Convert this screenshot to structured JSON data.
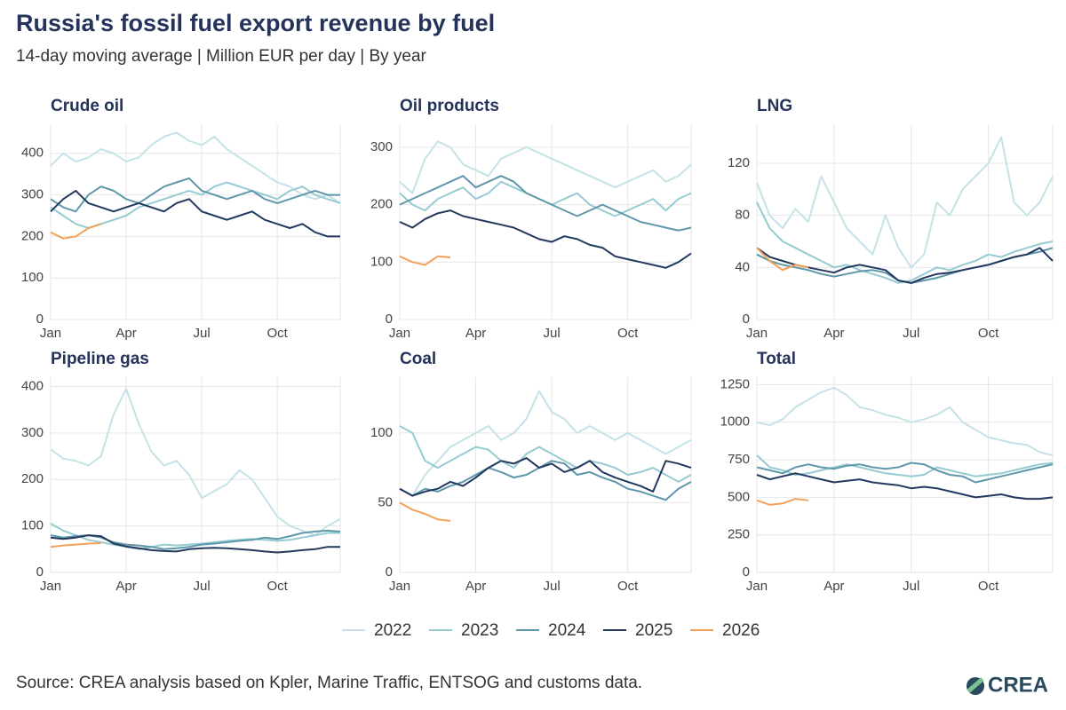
{
  "title": "Russia's fossil fuel export revenue by fuel",
  "subtitle": "14-day moving average | Million EUR per day | By year",
  "source": "Source: CREA analysis based on Kpler, Marine Traffic, ENTSOG and customs data.",
  "logo": "CREA",
  "legend": [
    {
      "name": "2022",
      "color": "#c4e2e8"
    },
    {
      "name": "2023",
      "color": "#95cbd2"
    },
    {
      "name": "2024",
      "color": "#5f97aa"
    },
    {
      "name": "2025",
      "color": "#22385f"
    },
    {
      "name": "2026",
      "color": "#f2a25a"
    }
  ],
  "chart_data": [
    {
      "type": "line",
      "title": "Crude oil",
      "categories": [
        "Jan",
        null,
        null,
        null,
        null,
        null,
        "Apr",
        null,
        null,
        null,
        null,
        null,
        "Jul",
        null,
        null,
        null,
        null,
        null,
        "Oct",
        null,
        null,
        null,
        null,
        null
      ],
      "ylim": [
        0,
        470
      ],
      "yticks": [
        0,
        100,
        200,
        300,
        400
      ],
      "series": [
        {
          "values": [
            370,
            400,
            380,
            390,
            410,
            400,
            380,
            390,
            420,
            440,
            450,
            430,
            420,
            440,
            410,
            390,
            370,
            350,
            330,
            320,
            300,
            290,
            300,
            280
          ]
        },
        {
          "values": [
            270,
            250,
            230,
            220,
            230,
            240,
            250,
            270,
            280,
            290,
            300,
            310,
            300,
            320,
            330,
            320,
            310,
            300,
            290,
            310,
            320,
            300,
            290,
            280
          ]
        },
        {
          "values": [
            290,
            270,
            260,
            300,
            320,
            310,
            290,
            280,
            300,
            320,
            330,
            340,
            310,
            300,
            290,
            300,
            310,
            290,
            280,
            290,
            300,
            310,
            300,
            300
          ]
        },
        {
          "values": [
            260,
            290,
            310,
            280,
            270,
            260,
            270,
            280,
            270,
            260,
            280,
            290,
            260,
            250,
            240,
            250,
            260,
            240,
            230,
            220,
            230,
            210,
            200,
            200
          ]
        },
        {
          "values": [
            210,
            195,
            200,
            220,
            230,
            null,
            null,
            null,
            null,
            null,
            null,
            null,
            null,
            null,
            null,
            null,
            null,
            null,
            null,
            null,
            null,
            null,
            null,
            null
          ]
        }
      ]
    },
    {
      "type": "line",
      "title": "Oil products",
      "categories": [
        "Jan",
        null,
        null,
        null,
        null,
        null,
        "Apr",
        null,
        null,
        null,
        null,
        null,
        "Jul",
        null,
        null,
        null,
        null,
        null,
        "Oct",
        null,
        null,
        null,
        null,
        null
      ],
      "ylim": [
        0,
        340
      ],
      "yticks": [
        0,
        100,
        200,
        300
      ],
      "series": [
        {
          "values": [
            240,
            220,
            280,
            310,
            300,
            270,
            260,
            250,
            280,
            290,
            300,
            290,
            280,
            270,
            260,
            250,
            240,
            230,
            240,
            250,
            260,
            240,
            250,
            270
          ]
        },
        {
          "values": [
            220,
            200,
            190,
            210,
            220,
            230,
            210,
            220,
            240,
            230,
            220,
            210,
            200,
            210,
            220,
            200,
            190,
            180,
            190,
            200,
            210,
            190,
            210,
            220
          ]
        },
        {
          "values": [
            200,
            210,
            220,
            230,
            240,
            250,
            230,
            240,
            250,
            240,
            220,
            210,
            200,
            190,
            180,
            190,
            200,
            190,
            180,
            170,
            165,
            160,
            155,
            160
          ]
        },
        {
          "values": [
            170,
            160,
            175,
            185,
            190,
            180,
            175,
            170,
            165,
            160,
            150,
            140,
            135,
            145,
            140,
            130,
            125,
            110,
            105,
            100,
            95,
            90,
            100,
            115
          ]
        },
        {
          "values": [
            110,
            100,
            95,
            110,
            108,
            null,
            null,
            null,
            null,
            null,
            null,
            null,
            null,
            null,
            null,
            null,
            null,
            null,
            null,
            null,
            null,
            null,
            null,
            null
          ]
        }
      ]
    },
    {
      "type": "line",
      "title": "LNG",
      "categories": [
        "Jan",
        null,
        null,
        null,
        null,
        null,
        "Apr",
        null,
        null,
        null,
        null,
        null,
        "Jul",
        null,
        null,
        null,
        null,
        null,
        "Oct",
        null,
        null,
        null,
        null,
        null
      ],
      "ylim": [
        0,
        150
      ],
      "yticks": [
        0,
        40,
        80,
        120
      ],
      "series": [
        {
          "values": [
            105,
            80,
            70,
            85,
            75,
            110,
            90,
            70,
            60,
            50,
            80,
            55,
            40,
            50,
            90,
            80,
            100,
            110,
            120,
            140,
            90,
            80,
            90,
            110
          ]
        },
        {
          "values": [
            90,
            70,
            60,
            55,
            50,
            45,
            40,
            42,
            38,
            35,
            32,
            28,
            30,
            35,
            40,
            38,
            42,
            45,
            50,
            48,
            52,
            55,
            58,
            60
          ]
        },
        {
          "values": [
            50,
            45,
            42,
            40,
            38,
            35,
            33,
            35,
            37,
            38,
            36,
            30,
            28,
            30,
            32,
            35,
            38,
            40,
            42,
            45,
            48,
            50,
            52,
            55
          ]
        },
        {
          "values": [
            55,
            48,
            45,
            42,
            40,
            38,
            36,
            40,
            42,
            40,
            38,
            30,
            28,
            32,
            35,
            36,
            38,
            40,
            42,
            45,
            48,
            50,
            55,
            45
          ]
        },
        {
          "values": [
            55,
            45,
            38,
            42,
            40,
            null,
            null,
            null,
            null,
            null,
            null,
            null,
            null,
            null,
            null,
            null,
            null,
            null,
            null,
            null,
            null,
            null,
            null,
            null
          ]
        }
      ]
    },
    {
      "type": "line",
      "title": "Pipeline gas",
      "categories": [
        "Jan",
        null,
        null,
        null,
        null,
        null,
        "Apr",
        null,
        null,
        null,
        null,
        null,
        "Jul",
        null,
        null,
        null,
        null,
        null,
        "Oct",
        null,
        null,
        null,
        null,
        null
      ],
      "ylim": [
        0,
        420
      ],
      "yticks": [
        0,
        100,
        200,
        300,
        400
      ],
      "series": [
        {
          "values": [
            265,
            245,
            240,
            230,
            250,
            340,
            395,
            320,
            260,
            230,
            240,
            210,
            160,
            175,
            190,
            220,
            200,
            160,
            120,
            100,
            90,
            80,
            100,
            115
          ]
        },
        {
          "values": [
            105,
            90,
            80,
            70,
            65,
            60,
            55,
            50,
            55,
            60,
            58,
            60,
            62,
            65,
            68,
            70,
            72,
            70,
            68,
            70,
            75,
            80,
            85,
            85
          ]
        },
        {
          "values": [
            80,
            75,
            78,
            80,
            75,
            65,
            60,
            58,
            55,
            50,
            52,
            55,
            60,
            62,
            65,
            68,
            70,
            75,
            72,
            78,
            85,
            88,
            90,
            88
          ]
        },
        {
          "values": [
            75,
            72,
            75,
            80,
            78,
            62,
            56,
            52,
            48,
            46,
            45,
            50,
            52,
            53,
            52,
            50,
            48,
            45,
            43,
            45,
            48,
            50,
            55,
            55
          ]
        },
        {
          "values": [
            55,
            58,
            60,
            62,
            63,
            null,
            null,
            null,
            null,
            null,
            null,
            null,
            null,
            null,
            null,
            null,
            null,
            null,
            null,
            null,
            null,
            null,
            null,
            null
          ]
        }
      ]
    },
    {
      "type": "line",
      "title": "Coal",
      "categories": [
        "Jan",
        null,
        null,
        null,
        null,
        null,
        "Apr",
        null,
        null,
        null,
        null,
        null,
        "Jul",
        null,
        null,
        null,
        null,
        null,
        "Oct",
        null,
        null,
        null,
        null,
        null
      ],
      "ylim": [
        0,
        140
      ],
      "yticks": [
        0,
        50,
        100
      ],
      "series": [
        {
          "values": [
            60,
            55,
            70,
            80,
            90,
            95,
            100,
            105,
            95,
            100,
            110,
            130,
            115,
            110,
            100,
            105,
            100,
            95,
            100,
            95,
            90,
            85,
            90,
            95
          ]
        },
        {
          "values": [
            105,
            100,
            80,
            75,
            80,
            85,
            90,
            88,
            80,
            75,
            85,
            90,
            85,
            80,
            75,
            80,
            78,
            75,
            70,
            72,
            75,
            70,
            65,
            70
          ]
        },
        {
          "values": [
            60,
            55,
            60,
            58,
            62,
            65,
            70,
            75,
            72,
            68,
            70,
            75,
            80,
            78,
            70,
            72,
            68,
            65,
            60,
            58,
            55,
            52,
            60,
            65
          ]
        },
        {
          "values": [
            60,
            55,
            58,
            60,
            65,
            62,
            68,
            75,
            80,
            78,
            82,
            75,
            78,
            72,
            75,
            80,
            72,
            68,
            65,
            62,
            58,
            80,
            78,
            75
          ]
        },
        {
          "values": [
            50,
            45,
            42,
            38,
            37,
            null,
            null,
            null,
            null,
            null,
            null,
            null,
            null,
            null,
            null,
            null,
            null,
            null,
            null,
            null,
            null,
            null,
            null,
            null
          ]
        }
      ]
    },
    {
      "type": "line",
      "title": "Total",
      "categories": [
        "Jan",
        null,
        null,
        null,
        null,
        null,
        "Apr",
        null,
        null,
        null,
        null,
        null,
        "Jul",
        null,
        null,
        null,
        null,
        null,
        "Oct",
        null,
        null,
        null,
        null,
        null
      ],
      "ylim": [
        0,
        1300
      ],
      "yticks": [
        0,
        250,
        500,
        750,
        1000,
        1250
      ],
      "series": [
        {
          "values": [
            1000,
            980,
            1020,
            1100,
            1150,
            1200,
            1230,
            1180,
            1100,
            1080,
            1050,
            1030,
            1000,
            1020,
            1050,
            1100,
            1000,
            950,
            900,
            880,
            860,
            850,
            800,
            780
          ]
        },
        {
          "values": [
            780,
            700,
            680,
            650,
            660,
            680,
            700,
            720,
            700,
            680,
            660,
            650,
            640,
            650,
            700,
            680,
            660,
            640,
            650,
            660,
            680,
            700,
            720,
            730
          ]
        },
        {
          "values": [
            700,
            680,
            660,
            700,
            720,
            700,
            690,
            710,
            720,
            700,
            690,
            700,
            730,
            720,
            680,
            650,
            640,
            600,
            620,
            640,
            660,
            680,
            700,
            720
          ]
        },
        {
          "values": [
            650,
            620,
            640,
            660,
            640,
            620,
            600,
            610,
            620,
            600,
            590,
            580,
            560,
            570,
            560,
            540,
            520,
            500,
            510,
            520,
            500,
            490,
            490,
            500
          ]
        },
        {
          "values": [
            480,
            450,
            460,
            490,
            480,
            null,
            null,
            null,
            null,
            null,
            null,
            null,
            null,
            null,
            null,
            null,
            null,
            null,
            null,
            null,
            null,
            null,
            null,
            null
          ]
        }
      ]
    }
  ]
}
